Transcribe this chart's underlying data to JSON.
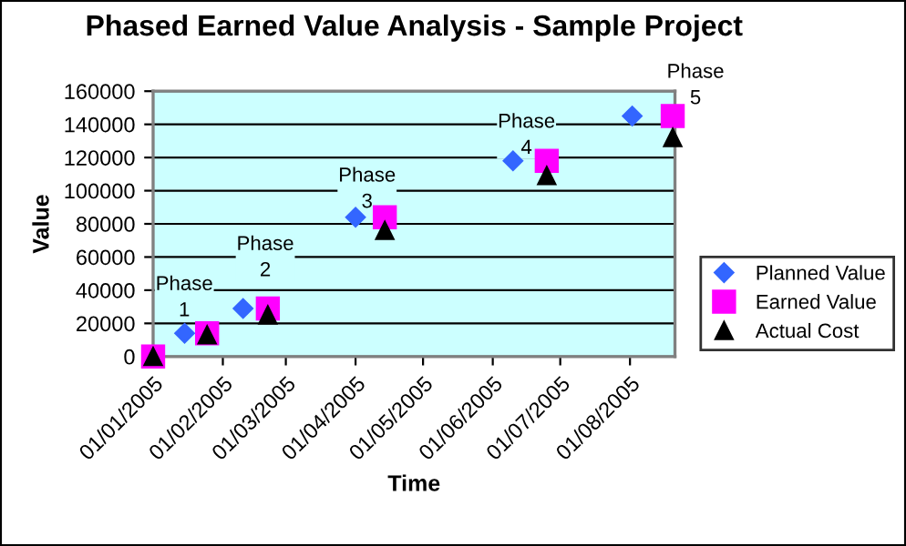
{
  "chart_data": {
    "type": "scatter",
    "title": "Phased Earned Value Analysis - Sample Project",
    "xlabel": "Time",
    "ylabel": "Value",
    "series": [
      {
        "name": "Planned Value",
        "color": "#3366ff",
        "marker": "diamond",
        "x": [
          "2005-01-15",
          "2005-02-10",
          "2005-04-01",
          "2005-06-10",
          "2005-08-02"
        ],
        "values": [
          14000,
          29000,
          84000,
          118000,
          145000
        ]
      },
      {
        "name": "Earned Value",
        "color": "#ff00ff",
        "marker": "square",
        "x": [
          "2005-01-01",
          "2005-01-25",
          "2005-02-21",
          "2005-04-14",
          "2005-06-25",
          "2005-08-20"
        ],
        "values": [
          0,
          14000,
          29000,
          84000,
          118000,
          145000
        ]
      },
      {
        "name": "Actual Cost",
        "color": "#000000",
        "marker": "triangle",
        "x": [
          "2005-01-01",
          "2005-01-25",
          "2005-02-21",
          "2005-04-14",
          "2005-06-25",
          "2005-08-20"
        ],
        "values": [
          0,
          13000,
          25000,
          76000,
          109000,
          132000
        ]
      }
    ],
    "xlim": [
      "2005-01-01",
      "2005-08-21"
    ],
    "xticks": [
      {
        "value": "2005-01-01",
        "label": "01/01/2005"
      },
      {
        "value": "2005-02-01",
        "label": "01/02/2005"
      },
      {
        "value": "2005-03-01",
        "label": "01/03/2005"
      },
      {
        "value": "2005-04-01",
        "label": "01/04/2005"
      },
      {
        "value": "2005-05-01",
        "label": "01/05/2005"
      },
      {
        "value": "2005-06-01",
        "label": "01/06/2005"
      },
      {
        "value": "2005-07-01",
        "label": "01/07/2005"
      },
      {
        "value": "2005-08-01",
        "label": "01/08/2005"
      }
    ],
    "ylim": [
      0,
      160000
    ],
    "yticks": [
      0,
      20000,
      40000,
      60000,
      80000,
      100000,
      120000,
      140000,
      160000
    ],
    "grid": "y",
    "legend": "right",
    "annotations": [
      "Phase\n1",
      "Phase\n2",
      "Phase\n3",
      "Phase\n4",
      "Phase\n5"
    ]
  }
}
